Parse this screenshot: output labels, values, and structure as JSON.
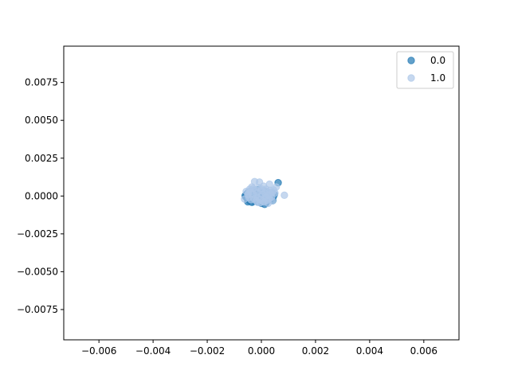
{
  "chart_data": {
    "type": "scatter",
    "title": "",
    "xlabel": "",
    "ylabel": "",
    "xlim": [
      -0.0073,
      0.0073
    ],
    "ylim": [
      -0.0095,
      0.0099
    ],
    "xticks": [
      -0.006,
      -0.004,
      -0.002,
      0.0,
      0.002,
      0.004,
      0.006
    ],
    "xtick_labels": [
      "−0.006",
      "−0.004",
      "−0.002",
      "0.000",
      "0.002",
      "0.004",
      "0.006"
    ],
    "yticks": [
      -0.0075,
      -0.005,
      -0.0025,
      0.0,
      0.0025,
      0.005,
      0.0075
    ],
    "ytick_labels": [
      "−0.0075",
      "−0.0050",
      "−0.0025",
      "0.0000",
      "0.0025",
      "0.0050",
      "0.0075"
    ],
    "grid": false,
    "legend_position": "top-right",
    "series": [
      {
        "name": "0.0",
        "color": "#1f77b4",
        "opacity": 0.7,
        "points": [
          [
            -0.00058,
            -5e-05
          ],
          [
            -0.00055,
            0.00012
          ],
          [
            -0.00052,
            -0.00018
          ],
          [
            -0.00048,
            0.00025
          ],
          [
            -0.00045,
            -0.0003
          ],
          [
            -0.00042,
            5e-05
          ],
          [
            -0.0004,
            0.00032
          ],
          [
            -0.00036,
            -0.00022
          ],
          [
            -0.00033,
            0.00014
          ],
          [
            -0.0003,
            -0.00035
          ],
          [
            -0.00027,
            0.00038
          ],
          [
            -0.00024,
            -8e-05
          ],
          [
            -0.00021,
            0.00022
          ],
          [
            -0.00018,
            -0.00028
          ],
          [
            -0.00015,
            0.0004
          ],
          [
            -0.00012,
            -0.0004
          ],
          [
            -9e-05,
            0.0001
          ],
          [
            -6e-05,
            -0.00015
          ],
          [
            -3e-05,
            0.0003
          ],
          [
            0.0,
            -0.00032
          ],
          [
            3e-05,
            0.00018
          ],
          [
            6e-05,
            -0.00042
          ],
          [
            9e-05,
            0.00035
          ],
          [
            0.00012,
            -0.0002
          ],
          [
            0.00015,
            8e-05
          ],
          [
            0.00018,
            -0.00045
          ],
          [
            0.00021,
            0.00028
          ],
          [
            0.00024,
            -0.0001
          ],
          [
            0.00027,
            0.00015
          ],
          [
            0.0003,
            -0.00025
          ],
          [
            0.00033,
            5e-05
          ],
          [
            0.00036,
            -0.00015
          ],
          [
            0.0004,
            0.0002
          ],
          [
            0.00044,
            -5e-05
          ],
          [
            0.00048,
            0.0001
          ],
          [
            -0.0006,
            2e-05
          ],
          [
            -0.0005,
            -0.00038
          ],
          [
            0.0,
            -0.00048
          ],
          [
            5e-05,
            0.00025
          ],
          [
            -0.0001,
            0.00042
          ],
          [
            0.00062,
            0.00088
          ],
          [
            0.00012,
            -0.00055
          ],
          [
            -0.00035,
            -0.00042
          ],
          [
            0.00042,
            -0.0003
          ]
        ]
      },
      {
        "name": "1.0",
        "color": "#aec7e8",
        "opacity": 0.7,
        "points": [
          [
            -0.00062,
            -0.0002
          ],
          [
            -0.00056,
            0.0003
          ],
          [
            -0.0005,
            8e-05
          ],
          [
            -0.00046,
            -0.0001
          ],
          [
            -0.00043,
            0.00045
          ],
          [
            -0.00038,
            -0.00025
          ],
          [
            -0.00035,
            0.0006
          ],
          [
            -0.00032,
            0.00015
          ],
          [
            -0.00028,
            -0.00018
          ],
          [
            -0.00025,
            0.00095
          ],
          [
            -0.00022,
            0.0004
          ],
          [
            -0.00019,
            -0.0003
          ],
          [
            -0.00016,
            0.00022
          ],
          [
            -0.00013,
            -8e-05
          ],
          [
            -0.0001,
            0.00055
          ],
          [
            -7e-05,
            0.00092
          ],
          [
            -4e-05,
            -0.00022
          ],
          [
            -1e-05,
            0.00035
          ],
          [
            2e-05,
            0.0001
          ],
          [
            5e-05,
            -0.00035
          ],
          [
            8e-05,
            0.00065
          ],
          [
            0.00011,
            0.0002
          ],
          [
            0.00014,
            -0.00012
          ],
          [
            0.00017,
            0.00045
          ],
          [
            0.0002,
            -0.00028
          ],
          [
            0.00023,
            0.0003
          ],
          [
            0.00026,
            5e-05
          ],
          [
            0.00029,
            -0.00018
          ],
          [
            0.00032,
            0.00038
          ],
          [
            0.00035,
            0.00012
          ],
          [
            0.00038,
            -8e-05
          ],
          [
            0.00041,
            0.00025
          ],
          [
            0.00045,
            0.0004
          ],
          [
            -0.0003,
            0.0005
          ],
          [
            -0.0004,
            0.00028
          ],
          [
            0.0,
            0.00048
          ],
          [
            0.0001,
            -0.0004
          ],
          [
            -0.0002,
            0.0
          ],
          [
            0.00015,
            0.0
          ],
          [
            0.00085,
            5e-05
          ],
          [
            0.00055,
            0.0006
          ],
          [
            0.0003,
            0.00078
          ],
          [
            -5e-05,
            -0.00045
          ],
          [
            0.00025,
            -0.00048
          ],
          [
            -0.00015,
            -0.0004
          ],
          [
            0.0004,
            -0.00032
          ],
          [
            -0.00048,
            0.00018
          ],
          [
            0.0005,
            0.0002
          ]
        ]
      }
    ]
  }
}
